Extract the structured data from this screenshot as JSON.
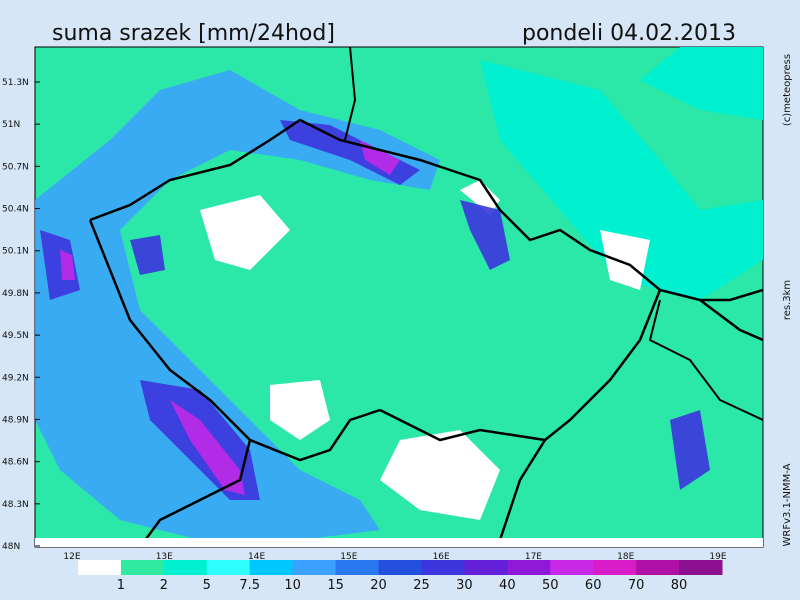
{
  "header": {
    "title": "suma srazek [mm/24hod]",
    "date": "pondeli 04.02.2013"
  },
  "map": {
    "lat_labels": [
      "51.3N",
      "51N",
      "50.7N",
      "50.4N",
      "50.1N",
      "49.8N",
      "49.5N",
      "49.2N",
      "48.9N",
      "48.6N",
      "48.3N",
      "48N"
    ],
    "lon_labels": [
      "12E",
      "13E",
      "14E",
      "15E",
      "16E",
      "17E",
      "18E",
      "19E"
    ]
  },
  "side_labels": [
    "(c)meteopress",
    "res.3km",
    "WRFv3.1-NMM-A"
  ],
  "legend": {
    "labels": [
      "1",
      "2",
      "5",
      "7.5",
      "10",
      "15",
      "20",
      "25",
      "30",
      "40",
      "50",
      "60",
      "70",
      "80"
    ],
    "colors": [
      "#ffffff",
      "#30eaa0",
      "#00f0d0",
      "#30ffff",
      "#00c8ff",
      "#3ca0ff",
      "#2a78f0",
      "#2450e0",
      "#3c34dc",
      "#6420d8",
      "#9018d8",
      "#c828e8",
      "#d81cc8",
      "#b010a8",
      "#8c1090"
    ]
  }
}
